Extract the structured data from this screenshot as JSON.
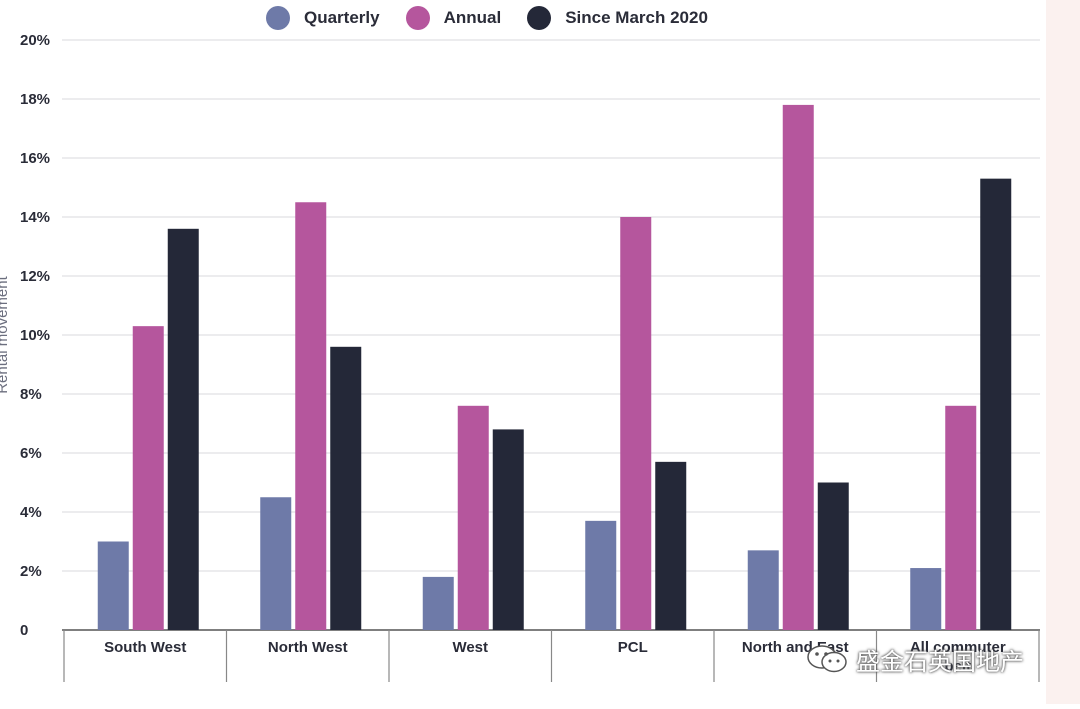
{
  "chart_data": {
    "type": "bar",
    "categories": [
      "South West",
      "North West",
      "West",
      "PCL",
      "North and East",
      "All commuter belt"
    ],
    "category_display": [
      "South West",
      "North West",
      "West",
      "PCL",
      "North and East",
      "All commuter\nbelt"
    ],
    "series": [
      {
        "name": "Quarterly",
        "values": [
          3.0,
          4.5,
          1.8,
          3.7,
          2.7,
          2.1
        ],
        "color": "#6e7aa8"
      },
      {
        "name": "Annual",
        "values": [
          10.3,
          14.5,
          7.6,
          14.0,
          17.8,
          7.6
        ],
        "color": "#b5569d"
      },
      {
        "name": "Since March 2020",
        "values": [
          13.6,
          9.6,
          6.8,
          5.7,
          5.0,
          15.3
        ],
        "color": "#242838"
      }
    ],
    "ylabel": "Rental movement",
    "xlabel": "",
    "ylim": [
      0,
      20
    ],
    "yticks": [
      "0",
      "2%",
      "4%",
      "6%",
      "8%",
      "10%",
      "12%",
      "14%",
      "16%",
      "18%",
      "20%"
    ],
    "grid": true,
    "legend_position": "top"
  },
  "watermark": {
    "text": "盛金石英国地产",
    "icon": "wechat-icon"
  },
  "colors": {
    "grid": "#d9d9de",
    "axis": "#555555",
    "text": "#2a2c38"
  }
}
